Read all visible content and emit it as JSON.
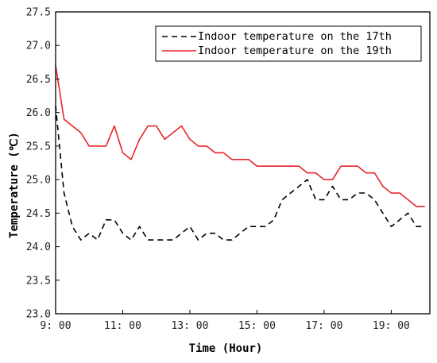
{
  "chart_data": {
    "type": "line",
    "xlabel": "Time (Hour)",
    "ylabel": "Temperature (℃)",
    "xlim": [
      9.0,
      20.15
    ],
    "ylim": [
      23.0,
      27.5
    ],
    "x_ticks": [
      {
        "value": 9,
        "label": "9: 00"
      },
      {
        "value": 11,
        "label": "11: 00"
      },
      {
        "value": 13,
        "label": "13: 00"
      },
      {
        "value": 15,
        "label": "15: 00"
      },
      {
        "value": 17,
        "label": "17: 00"
      },
      {
        "value": 19,
        "label": "19: 00"
      }
    ],
    "y_ticks": [
      {
        "value": 23.0,
        "label": "23.0"
      },
      {
        "value": 23.5,
        "label": "23.5"
      },
      {
        "value": 24.0,
        "label": "24.0"
      },
      {
        "value": 24.5,
        "label": "24.5"
      },
      {
        "value": 25.0,
        "label": "25.0"
      },
      {
        "value": 25.5,
        "label": "25.5"
      },
      {
        "value": 26.0,
        "label": "26.0"
      },
      {
        "value": 26.5,
        "label": "26.5"
      },
      {
        "value": 27.0,
        "label": "27.0"
      },
      {
        "value": 27.5,
        "label": "27.5"
      }
    ],
    "grid": false,
    "legend_position": "top-right",
    "series": [
      {
        "name": "Indoor temperature on the 17th",
        "color": "#000000",
        "style": "dashed",
        "points": [
          [
            9.0,
            26.1
          ],
          [
            9.25,
            24.8
          ],
          [
            9.5,
            24.3
          ],
          [
            9.75,
            24.1
          ],
          [
            10.0,
            24.2
          ],
          [
            10.25,
            24.1
          ],
          [
            10.5,
            24.4
          ],
          [
            10.75,
            24.4
          ],
          [
            11.0,
            24.2
          ],
          [
            11.25,
            24.1
          ],
          [
            11.5,
            24.3
          ],
          [
            11.75,
            24.1
          ],
          [
            12.0,
            24.1
          ],
          [
            12.25,
            24.1
          ],
          [
            12.5,
            24.1
          ],
          [
            12.75,
            24.2
          ],
          [
            13.0,
            24.3
          ],
          [
            13.25,
            24.1
          ],
          [
            13.5,
            24.2
          ],
          [
            13.75,
            24.2
          ],
          [
            14.0,
            24.1
          ],
          [
            14.25,
            24.1
          ],
          [
            14.5,
            24.2
          ],
          [
            14.75,
            24.3
          ],
          [
            15.0,
            24.3
          ],
          [
            15.25,
            24.3
          ],
          [
            15.5,
            24.4
          ],
          [
            15.75,
            24.7
          ],
          [
            16.0,
            24.8
          ],
          [
            16.25,
            24.9
          ],
          [
            16.5,
            25.0
          ],
          [
            16.75,
            24.7
          ],
          [
            17.0,
            24.7
          ],
          [
            17.25,
            24.9
          ],
          [
            17.5,
            24.7
          ],
          [
            17.75,
            24.7
          ],
          [
            18.0,
            24.8
          ],
          [
            18.25,
            24.8
          ],
          [
            18.5,
            24.7
          ],
          [
            18.75,
            24.5
          ],
          [
            19.0,
            24.3
          ],
          [
            19.25,
            24.4
          ],
          [
            19.5,
            24.5
          ],
          [
            19.75,
            24.3
          ],
          [
            20.0,
            24.3
          ]
        ]
      },
      {
        "name": "Indoor temperature on the 19th",
        "color": "#e8262b",
        "style": "solid",
        "points": [
          [
            9.0,
            26.7
          ],
          [
            9.25,
            25.9
          ],
          [
            9.5,
            25.8
          ],
          [
            9.75,
            25.7
          ],
          [
            10.0,
            25.5
          ],
          [
            10.25,
            25.5
          ],
          [
            10.5,
            25.5
          ],
          [
            10.75,
            25.8
          ],
          [
            11.0,
            25.4
          ],
          [
            11.25,
            25.3
          ],
          [
            11.5,
            25.6
          ],
          [
            11.75,
            25.8
          ],
          [
            12.0,
            25.8
          ],
          [
            12.25,
            25.6
          ],
          [
            12.5,
            25.7
          ],
          [
            12.75,
            25.8
          ],
          [
            13.0,
            25.6
          ],
          [
            13.25,
            25.5
          ],
          [
            13.5,
            25.5
          ],
          [
            13.75,
            25.4
          ],
          [
            14.0,
            25.4
          ],
          [
            14.25,
            25.3
          ],
          [
            14.5,
            25.3
          ],
          [
            14.75,
            25.3
          ],
          [
            15.0,
            25.2
          ],
          [
            15.25,
            25.2
          ],
          [
            15.5,
            25.2
          ],
          [
            15.75,
            25.2
          ],
          [
            16.0,
            25.2
          ],
          [
            16.25,
            25.2
          ],
          [
            16.5,
            25.1
          ],
          [
            16.75,
            25.1
          ],
          [
            17.0,
            25.0
          ],
          [
            17.25,
            25.0
          ],
          [
            17.5,
            25.2
          ],
          [
            17.75,
            25.2
          ],
          [
            18.0,
            25.2
          ],
          [
            18.25,
            25.1
          ],
          [
            18.5,
            25.1
          ],
          [
            18.75,
            24.9
          ],
          [
            19.0,
            24.8
          ],
          [
            19.25,
            24.8
          ],
          [
            19.5,
            24.7
          ],
          [
            19.75,
            24.6
          ],
          [
            20.0,
            24.6
          ]
        ]
      }
    ]
  }
}
